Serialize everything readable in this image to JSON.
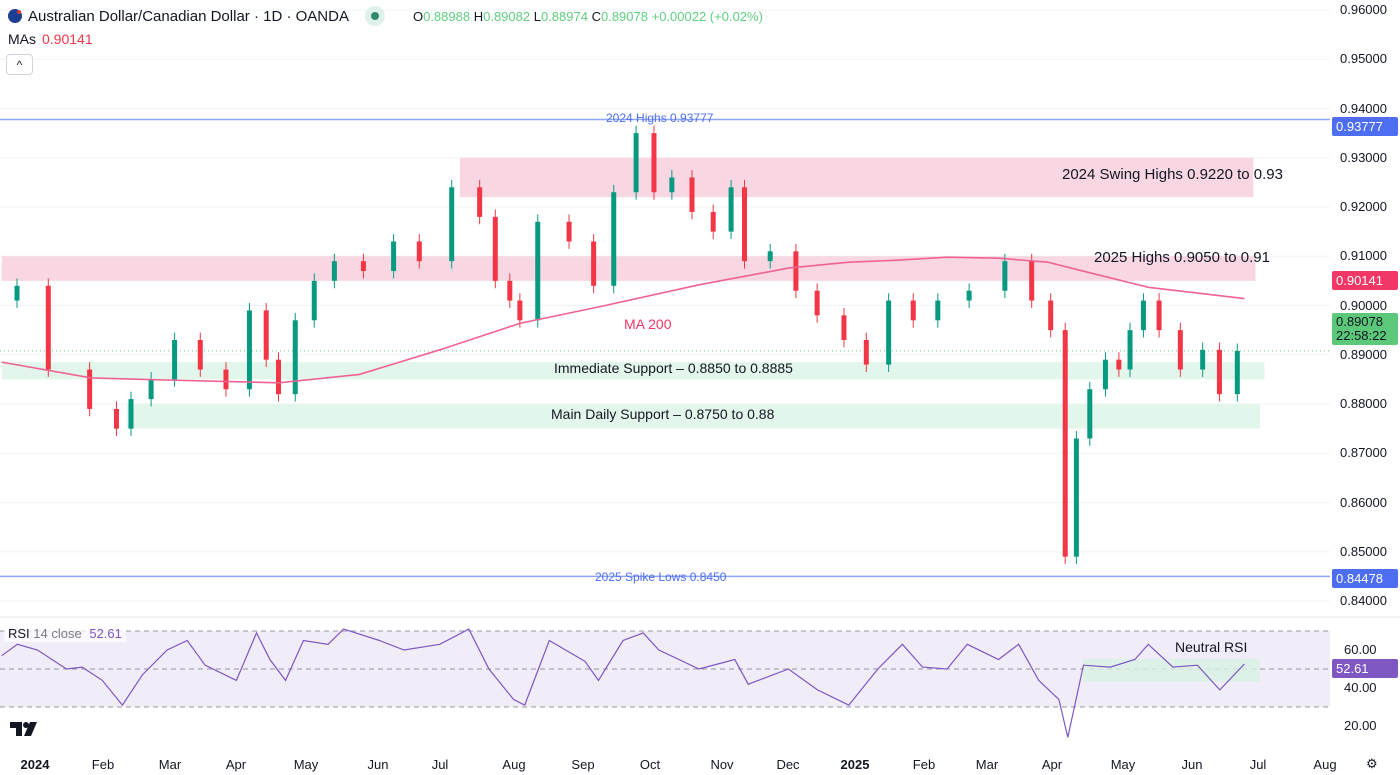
{
  "header": {
    "title": "Australian Dollar/Canadian Dollar · 1D · OANDA",
    "o_label": "O",
    "o": "0.88988",
    "h_label": "H",
    "h": "0.89082",
    "l_label": "L",
    "l": "0.88974",
    "c_label": "C",
    "c": "0.89078",
    "change": "+0.00022 (+0.02%)",
    "flag_icon": "australia-flag-icon",
    "market_status_icon": "market-open-dot"
  },
  "mas": {
    "label": "MAs",
    "value": "0.90141"
  },
  "collapse_label": "^",
  "colors": {
    "up": "#089981",
    "down": "#f23645",
    "ma": "#f06292",
    "level_line": "#8ea6f5",
    "zone_red": "#f8d7e3",
    "zone_green": "#e3f6ec",
    "rsi": "#7e57c2",
    "rsi_band": "#f0ecf8"
  },
  "price_axis": {
    "ticks": [
      "0.96000",
      "0.95000",
      "0.94000",
      "0.93000",
      "0.92000",
      "0.91000",
      "0.90000",
      "0.89000",
      "0.88000",
      "0.87000",
      "0.86000",
      "0.85000",
      "0.84000"
    ],
    "tags": {
      "high_level": "0.93777",
      "ma": "0.90141",
      "last_price": "0.89078",
      "countdown": "22:58:22",
      "low_level": "0.84478"
    }
  },
  "time_axis": [
    "2024",
    "Feb",
    "Mar",
    "Apr",
    "May",
    "Jun",
    "Jul",
    "Aug",
    "Sep",
    "Oct",
    "Nov",
    "Dec",
    "2025",
    "Feb",
    "Mar",
    "Apr",
    "May",
    "Jun",
    "Jul",
    "Aug"
  ],
  "annotations": {
    "highs_2024": "2024 Highs 0.93777",
    "swing_highs": "2024 Swing Highs 0.9220 to 0.93",
    "highs_2025": "2025 Highs 0.9050 to 0.91",
    "ma200": "MA 200",
    "immediate_support": "Immediate Support – 0.8850 to 0.8885",
    "main_support": "Main Daily Support – 0.8750 to 0.88",
    "spike_lows": "2025 Spike Lows 0.8450",
    "neutral_rsi": "Neutral RSI"
  },
  "rsi": {
    "label": "RSI",
    "params": "14 close",
    "value": "52.61",
    "ticks": [
      "60.00",
      "40.00",
      "20.00"
    ]
  },
  "chart_data": {
    "type": "candlestick",
    "symbol": "AUDCAD",
    "timeframe": "1D",
    "ylim": [
      0.835,
      0.962
    ],
    "levels": [
      {
        "name": "2024 Highs",
        "price": 0.93777
      },
      {
        "name": "2025 Spike Lows",
        "price": 0.845
      }
    ],
    "zones": [
      {
        "name": "2024 Swing Highs",
        "from": 0.922,
        "to": 0.93,
        "start": "2024-07-10",
        "end": "2025-06-30",
        "color": "red"
      },
      {
        "name": "2025 Highs",
        "from": 0.905,
        "to": 0.91,
        "start": "2023-12-18",
        "end": "2025-07-01",
        "color": "red"
      },
      {
        "name": "Immediate Support",
        "from": 0.885,
        "to": 0.8885,
        "start": "2023-12-18",
        "end": "2025-07-05",
        "color": "green"
      },
      {
        "name": "Main Daily Support",
        "from": 0.875,
        "to": 0.88,
        "start": "2024-02-12",
        "end": "2025-07-03",
        "color": "green"
      }
    ],
    "closes": [
      [
        "2023-12-18",
        0.901
      ],
      [
        "2023-12-29",
        0.904
      ],
      [
        "2024-01-15",
        0.887
      ],
      [
        "2024-02-04",
        0.879
      ],
      [
        "2024-02-08",
        0.875
      ],
      [
        "2024-02-17",
        0.881
      ],
      [
        "2024-02-26",
        0.885
      ],
      [
        "2024-03-09",
        0.893
      ],
      [
        "2024-03-20",
        0.887
      ],
      [
        "2024-04-01",
        0.883
      ],
      [
        "2024-04-10",
        0.899
      ],
      [
        "2024-04-16",
        0.889
      ],
      [
        "2024-04-21",
        0.882
      ],
      [
        "2024-05-01",
        0.897
      ],
      [
        "2024-05-08",
        0.905
      ],
      [
        "2024-05-19",
        0.909
      ],
      [
        "2024-06-03",
        0.907
      ],
      [
        "2024-06-15",
        0.913
      ],
      [
        "2024-06-26",
        0.909
      ],
      [
        "2024-07-14",
        0.924
      ],
      [
        "2024-07-21",
        0.918
      ],
      [
        "2024-07-28",
        0.905
      ],
      [
        "2024-08-03",
        0.901
      ],
      [
        "2024-08-06",
        0.897
      ],
      [
        "2024-08-19",
        0.917
      ],
      [
        "2024-09-03",
        0.913
      ],
      [
        "2024-09-10",
        0.904
      ],
      [
        "2024-09-21",
        0.923
      ],
      [
        "2024-09-30",
        0.935
      ],
      [
        "2024-10-07",
        0.923
      ],
      [
        "2024-10-16",
        0.926
      ],
      [
        "2024-10-25",
        0.919
      ],
      [
        "2024-11-04",
        0.915
      ],
      [
        "2024-11-10",
        0.924
      ],
      [
        "2024-11-16",
        0.909
      ],
      [
        "2024-12-03",
        0.911
      ],
      [
        "2024-12-09",
        0.903
      ],
      [
        "2024-12-22",
        0.898
      ],
      [
        "2025-01-02",
        0.893
      ],
      [
        "2025-01-11",
        0.888
      ],
      [
        "2025-01-22",
        0.901
      ],
      [
        "2025-02-02",
        0.897
      ],
      [
        "2025-02-13",
        0.901
      ],
      [
        "2025-03-02",
        0.903
      ],
      [
        "2025-03-17",
        0.909
      ],
      [
        "2025-03-26",
        0.901
      ],
      [
        "2025-04-03",
        0.895
      ],
      [
        "2025-04-08",
        0.849
      ],
      [
        "2025-04-13",
        0.873
      ],
      [
        "2025-04-20",
        0.883
      ],
      [
        "2025-04-27",
        0.889
      ],
      [
        "2025-05-02",
        0.887
      ],
      [
        "2025-05-07",
        0.895
      ],
      [
        "2025-05-14",
        0.901
      ],
      [
        "2025-05-21",
        0.895
      ],
      [
        "2025-06-02",
        0.887
      ],
      [
        "2025-06-10",
        0.891
      ],
      [
        "2025-06-17",
        0.882
      ],
      [
        "2025-06-26",
        0.89078
      ]
    ],
    "ma200": [
      [
        "2023-12-18",
        0.8885
      ],
      [
        "2024-01-27",
        0.8853
      ],
      [
        "2024-02-27",
        0.8849
      ],
      [
        "2024-04-20",
        0.8843
      ],
      [
        "2024-05-26",
        0.886
      ],
      [
        "2024-07-01",
        0.891
      ],
      [
        "2024-08-06",
        0.8964
      ],
      [
        "2024-09-10",
        0.8997
      ],
      [
        "2024-10-25",
        0.9042
      ],
      [
        "2024-12-04",
        0.9076
      ],
      [
        "2024-12-31",
        0.9088
      ],
      [
        "2025-01-22",
        0.9092
      ],
      [
        "2025-02-13",
        0.9098
      ],
      [
        "2025-03-08",
        0.9096
      ],
      [
        "2025-03-30",
        0.9088
      ],
      [
        "2025-04-13",
        0.9072
      ],
      [
        "2025-05-14",
        0.9037
      ],
      [
        "2025-06-26",
        0.90141
      ]
    ],
    "rsi_values": [
      [
        "2023-12-18",
        57
      ],
      [
        "2023-12-25",
        63
      ],
      [
        "2024-01-03",
        60
      ],
      [
        "2024-01-16",
        50
      ],
      [
        "2024-01-23",
        51
      ],
      [
        "2024-02-01",
        44
      ],
      [
        "2024-02-10",
        31
      ],
      [
        "2024-02-19",
        47
      ],
      [
        "2024-03-01",
        60
      ],
      [
        "2024-03-10",
        65
      ],
      [
        "2024-03-18",
        52
      ],
      [
        "2024-04-01",
        44
      ],
      [
        "2024-04-10",
        69
      ],
      [
        "2024-04-16",
        55
      ],
      [
        "2024-04-23",
        44
      ],
      [
        "2024-05-01",
        65
      ],
      [
        "2024-05-12",
        63
      ],
      [
        "2024-05-19",
        71
      ],
      [
        "2024-06-04",
        65
      ],
      [
        "2024-06-15",
        60
      ],
      [
        "2024-07-01",
        63
      ],
      [
        "2024-07-14",
        71
      ],
      [
        "2024-07-23",
        50
      ],
      [
        "2024-08-03",
        34
      ],
      [
        "2024-08-08",
        31
      ],
      [
        "2024-08-19",
        65
      ],
      [
        "2024-09-04",
        54
      ],
      [
        "2024-09-10",
        44
      ],
      [
        "2024-09-21",
        65
      ],
      [
        "2024-09-30",
        69
      ],
      [
        "2024-10-07",
        60
      ],
      [
        "2024-10-25",
        50
      ],
      [
        "2024-11-10",
        55
      ],
      [
        "2024-11-16",
        42
      ],
      [
        "2024-12-04",
        50
      ],
      [
        "2024-12-17",
        39
      ],
      [
        "2024-12-31",
        31
      ],
      [
        "2025-01-13",
        50
      ],
      [
        "2025-01-24",
        63
      ],
      [
        "2025-02-02",
        51
      ],
      [
        "2025-02-13",
        50
      ],
      [
        "2025-02-22",
        63
      ],
      [
        "2025-03-08",
        55
      ],
      [
        "2025-03-17",
        63
      ],
      [
        "2025-03-26",
        44
      ],
      [
        "2025-04-04",
        34
      ],
      [
        "2025-04-08",
        14
      ],
      [
        "2025-04-15",
        52
      ],
      [
        "2025-04-27",
        51
      ],
      [
        "2025-05-08",
        55
      ],
      [
        "2025-05-14",
        63
      ],
      [
        "2025-05-25",
        51
      ],
      [
        "2025-06-05",
        52
      ],
      [
        "2025-06-15",
        39
      ],
      [
        "2025-06-26",
        52.61
      ]
    ],
    "rsi_bands": [
      70,
      50,
      30
    ]
  }
}
